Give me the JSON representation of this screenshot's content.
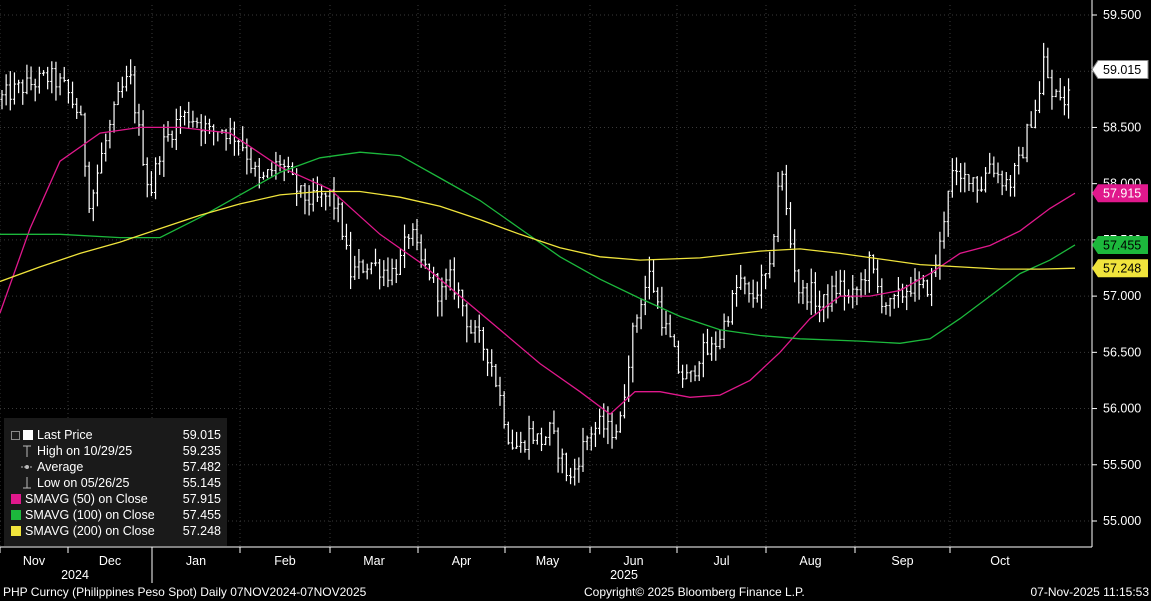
{
  "chart_data": {
    "type": "bar",
    "subtype": "ohlc",
    "y_axis": {
      "side": "right",
      "range": [
        54.95,
        59.55
      ],
      "ticks": [
        "55.000",
        "55.500",
        "56.000",
        "56.500",
        "57.000",
        "57.500",
        "58.000",
        "58.500",
        "59.000",
        "59.500"
      ]
    },
    "x_axis": {
      "months": [
        "Nov",
        "Dec",
        "Jan",
        "Feb",
        "Mar",
        "Apr",
        "May",
        "Jun",
        "Jul",
        "Aug",
        "Sep",
        "Oct"
      ],
      "years": [
        "2024",
        "2025"
      ]
    },
    "series": [
      {
        "name": "Last Price",
        "color": "#ffffff",
        "last": "59.015"
      },
      {
        "name": "SMAVG (50)  on Close",
        "color": "#e0188c",
        "last": "57.915",
        "values": [
          [
            0,
            56.85
          ],
          [
            30,
            57.6
          ],
          [
            60,
            58.2
          ],
          [
            100,
            58.45
          ],
          [
            140,
            58.5
          ],
          [
            180,
            58.5
          ],
          [
            230,
            58.45
          ],
          [
            280,
            58.15
          ],
          [
            330,
            57.95
          ],
          [
            380,
            57.55
          ],
          [
            420,
            57.3
          ],
          [
            460,
            57.0
          ],
          [
            500,
            56.7
          ],
          [
            540,
            56.4
          ],
          [
            580,
            56.15
          ],
          [
            610,
            55.95
          ],
          [
            635,
            56.15
          ],
          [
            660,
            56.15
          ],
          [
            690,
            56.1
          ],
          [
            720,
            56.12
          ],
          [
            750,
            56.25
          ],
          [
            780,
            56.5
          ],
          [
            810,
            56.8
          ],
          [
            840,
            57.0
          ],
          [
            870,
            57.0
          ],
          [
            900,
            57.05
          ],
          [
            930,
            57.2
          ],
          [
            960,
            57.38
          ],
          [
            990,
            57.45
          ],
          [
            1020,
            57.58
          ],
          [
            1050,
            57.78
          ],
          [
            1075,
            57.915
          ]
        ]
      },
      {
        "name": "SMAVG (100)  on Close",
        "color": "#1cb83c",
        "last": "57.455",
        "values": [
          [
            0,
            57.55
          ],
          [
            60,
            57.55
          ],
          [
            120,
            57.52
          ],
          [
            160,
            57.52
          ],
          [
            200,
            57.7
          ],
          [
            240,
            57.9
          ],
          [
            280,
            58.1
          ],
          [
            320,
            58.23
          ],
          [
            360,
            58.28
          ],
          [
            400,
            58.25
          ],
          [
            440,
            58.05
          ],
          [
            480,
            57.85
          ],
          [
            520,
            57.6
          ],
          [
            560,
            57.35
          ],
          [
            600,
            57.15
          ],
          [
            640,
            56.98
          ],
          [
            680,
            56.82
          ],
          [
            720,
            56.7
          ],
          [
            760,
            56.65
          ],
          [
            800,
            56.62
          ],
          [
            860,
            56.6
          ],
          [
            900,
            56.58
          ],
          [
            930,
            56.62
          ],
          [
            960,
            56.8
          ],
          [
            990,
            57.0
          ],
          [
            1020,
            57.2
          ],
          [
            1050,
            57.32
          ],
          [
            1075,
            57.455
          ]
        ]
      },
      {
        "name": "SMAVG (200)  on Close",
        "color": "#f0e43c",
        "last": "57.248",
        "values": [
          [
            0,
            57.13
          ],
          [
            40,
            57.26
          ],
          [
            80,
            57.38
          ],
          [
            120,
            57.48
          ],
          [
            160,
            57.6
          ],
          [
            200,
            57.72
          ],
          [
            240,
            57.82
          ],
          [
            280,
            57.9
          ],
          [
            320,
            57.93
          ],
          [
            360,
            57.93
          ],
          [
            400,
            57.88
          ],
          [
            440,
            57.8
          ],
          [
            480,
            57.68
          ],
          [
            520,
            57.55
          ],
          [
            560,
            57.43
          ],
          [
            600,
            57.35
          ],
          [
            640,
            57.32
          ],
          [
            700,
            57.34
          ],
          [
            760,
            57.4
          ],
          [
            800,
            57.42
          ],
          [
            840,
            57.38
          ],
          [
            880,
            57.33
          ],
          [
            920,
            57.28
          ],
          [
            960,
            57.26
          ],
          [
            1000,
            57.24
          ],
          [
            1040,
            57.24
          ],
          [
            1075,
            57.248
          ]
        ]
      }
    ],
    "price_path": [
      [
        0,
        58.75
      ],
      [
        8,
        58.8
      ],
      [
        20,
        58.85
      ],
      [
        35,
        58.9
      ],
      [
        50,
        58.95
      ],
      [
        65,
        58.85
      ],
      [
        80,
        58.6
      ],
      [
        90,
        57.8
      ],
      [
        100,
        58.2
      ],
      [
        110,
        58.5
      ],
      [
        120,
        58.8
      ],
      [
        130,
        58.95
      ],
      [
        140,
        58.4
      ],
      [
        150,
        57.9
      ],
      [
        160,
        58.3
      ],
      [
        170,
        58.45
      ],
      [
        180,
        58.6
      ],
      [
        190,
        58.6
      ],
      [
        200,
        58.55
      ],
      [
        210,
        58.45
      ],
      [
        220,
        58.5
      ],
      [
        230,
        58.45
      ],
      [
        240,
        58.4
      ],
      [
        250,
        58.2
      ],
      [
        260,
        58.0
      ],
      [
        270,
        58.1
      ],
      [
        280,
        58.2
      ],
      [
        290,
        58.05
      ],
      [
        300,
        57.9
      ],
      [
        310,
        57.85
      ],
      [
        320,
        57.85
      ],
      [
        330,
        57.9
      ],
      [
        340,
        57.7
      ],
      [
        350,
        57.2
      ],
      [
        360,
        57.25
      ],
      [
        370,
        57.3
      ],
      [
        380,
        57.25
      ],
      [
        390,
        57.2
      ],
      [
        400,
        57.3
      ],
      [
        410,
        57.6
      ],
      [
        420,
        57.3
      ],
      [
        430,
        57.2
      ],
      [
        440,
        57.0
      ],
      [
        450,
        57.15
      ],
      [
        460,
        57.0
      ],
      [
        470,
        56.7
      ],
      [
        480,
        56.6
      ],
      [
        490,
        56.45
      ],
      [
        500,
        56.1
      ],
      [
        510,
        55.7
      ],
      [
        520,
        55.65
      ],
      [
        530,
        55.8
      ],
      [
        540,
        55.7
      ],
      [
        550,
        55.8
      ],
      [
        560,
        55.6
      ],
      [
        570,
        55.35
      ],
      [
        580,
        55.6
      ],
      [
        590,
        55.8
      ],
      [
        600,
        55.85
      ],
      [
        610,
        55.8
      ],
      [
        620,
        55.85
      ],
      [
        630,
        56.55
      ],
      [
        640,
        56.95
      ],
      [
        650,
        57.2
      ],
      [
        660,
        56.85
      ],
      [
        670,
        56.6
      ],
      [
        680,
        56.3
      ],
      [
        690,
        56.25
      ],
      [
        700,
        56.5
      ],
      [
        710,
        56.5
      ],
      [
        720,
        56.65
      ],
      [
        730,
        56.9
      ],
      [
        740,
        57.15
      ],
      [
        750,
        56.95
      ],
      [
        760,
        57.1
      ],
      [
        770,
        57.2
      ],
      [
        780,
        58.2
      ],
      [
        790,
        57.5
      ],
      [
        800,
        57.0
      ],
      [
        810,
        57.05
      ],
      [
        820,
        56.9
      ],
      [
        830,
        57.0
      ],
      [
        840,
        57.1
      ],
      [
        850,
        56.95
      ],
      [
        860,
        57.1
      ],
      [
        870,
        57.3
      ],
      [
        880,
        57.0
      ],
      [
        890,
        56.9
      ],
      [
        900,
        57.0
      ],
      [
        910,
        57.1
      ],
      [
        920,
        57.05
      ],
      [
        930,
        57.1
      ],
      [
        940,
        57.45
      ],
      [
        950,
        58.1
      ],
      [
        960,
        58.0
      ],
      [
        970,
        58.1
      ],
      [
        980,
        57.95
      ],
      [
        990,
        58.2
      ],
      [
        1000,
        58.05
      ],
      [
        1010,
        58.0
      ],
      [
        1020,
        58.2
      ],
      [
        1030,
        58.55
      ],
      [
        1040,
        58.8
      ],
      [
        1045,
        59.2
      ],
      [
        1050,
        58.75
      ],
      [
        1060,
        58.8
      ],
      [
        1066,
        58.65
      ],
      [
        1072,
        59.015
      ]
    ],
    "legend": [
      {
        "label": "Last Price",
        "value": "59.015",
        "color": "#ffffff",
        "marker": "square"
      },
      {
        "label": "High on 10/29/25",
        "value": "59.235",
        "color": "#cccccc",
        "marker": "high"
      },
      {
        "label": "Average",
        "value": "57.482",
        "color": "#cccccc",
        "marker": "avg"
      },
      {
        "label": "Low on 05/26/25",
        "value": "55.145",
        "color": "#cccccc",
        "marker": "low"
      },
      {
        "label": "SMAVG (50)  on Close",
        "value": "57.915",
        "color": "#e0188c",
        "marker": "square"
      },
      {
        "label": "SMAVG (100)  on Close",
        "value": "57.455",
        "color": "#1cb83c",
        "marker": "square"
      },
      {
        "label": "SMAVG (200)  on Close",
        "value": "57.248",
        "color": "#f0e43c",
        "marker": "square"
      }
    ]
  },
  "footer": {
    "left": "PHP Curncy (Philippines Peso Spot) Daily 07NOV2024-07NOV2025",
    "center": "Copyright© 2025 Bloomberg Finance L.P.",
    "right": "07-Nov-2025 11:15:53"
  }
}
